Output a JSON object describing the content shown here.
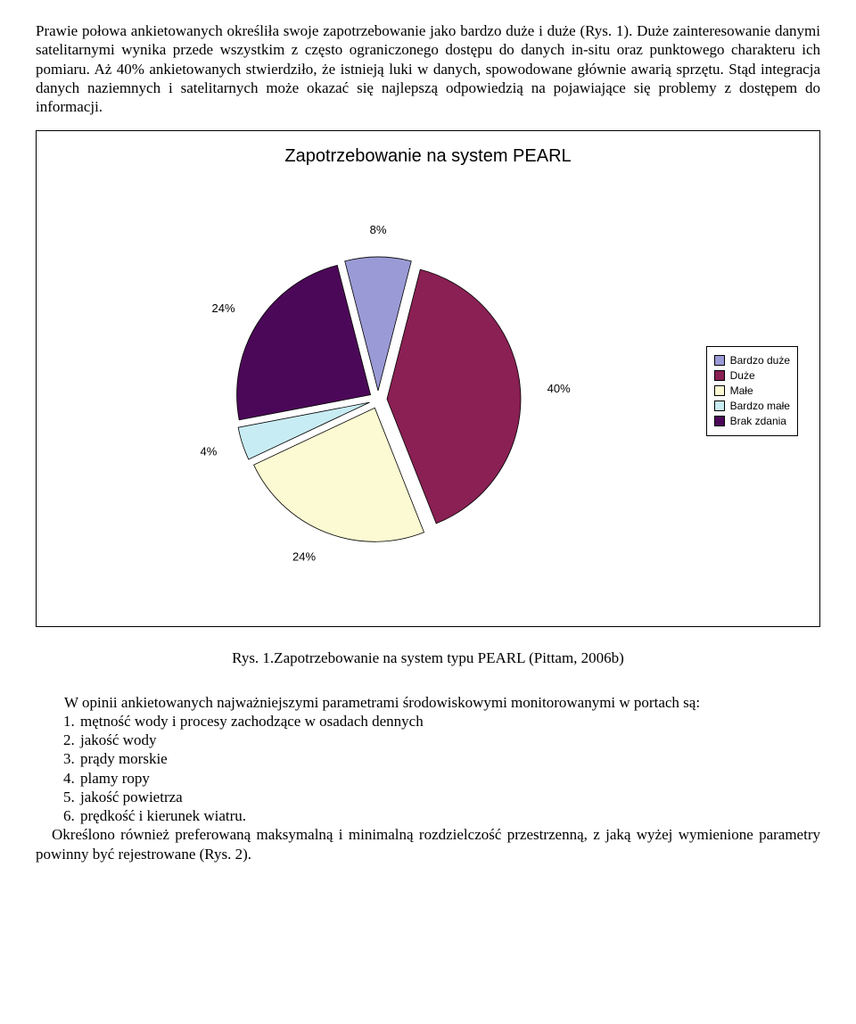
{
  "paragraph1": "Prawie połowa ankietowanych określiła swoje zapotrzebowanie jako bardzo duże i duże (Rys. 1). Duże zainteresowanie danymi satelitarnymi wynika przede wszystkim z często ograniczonego dostępu do danych in-situ oraz punktowego charakteru ich pomiaru. Aż 40% ankietowanych stwierdziło, że istnieją luki w danych,  spowodowane głównie awarią sprzętu. Stąd integracja danych naziemnych i satelitarnych może okazać się najlepszą odpowiedzią na pojawiające się problemy z dostępem do informacji.",
  "chart": {
    "title": "Zapotrzebowanie na system PEARL",
    "type": "pie",
    "slices": [
      {
        "label": "Bardzo duże",
        "value": 8,
        "color": "#9a9ad6",
        "labelText": "8%"
      },
      {
        "label": "Duże",
        "value": 40,
        "color": "#8a2054",
        "labelText": "40%"
      },
      {
        "label": "Małe",
        "value": 24,
        "color": "#fcfad2",
        "labelText": "24%"
      },
      {
        "label": "Bardzo małe",
        "value": 4,
        "color": "#c8ecf4",
        "labelText": "4%"
      },
      {
        "label": "Brak zdania",
        "value": 24,
        "color": "#4c0858",
        "labelText": "24%"
      }
    ],
    "legend": [
      "Bardzo duże",
      "Duże",
      "Małe",
      "Bardzo małe",
      "Brak zdania"
    ],
    "legend_colors": [
      "#9a9ad6",
      "#8a2054",
      "#fcfad2",
      "#c8ecf4",
      "#4c0858"
    ],
    "title_font": "Arial",
    "title_fontsize": 20,
    "label_font": "Arial",
    "label_fontsize": 13,
    "exploded": true,
    "background_color": "#ffffff",
    "border_color": "#000000"
  },
  "caption": "Rys. 1.Zapotrzebowanie na system typu PEARL (Pittam, 2006b)",
  "paragraph2_lead": "W    opinii    ankietowanych    najważniejszymi    parametrami    środowiskowymi monitorowanymi w portach są:",
  "list": [
    "mętność wody i procesy zachodzące w osadach dennych",
    "jakość wody",
    "prądy morskie",
    "plamy ropy",
    "jakość powietrza",
    "prędkość i kierunek wiatru."
  ],
  "paragraph3": "Określono również preferowaną maksymalną i minimalną rozdzielczość przestrzenną, z jaką wyżej wymienione parametry powinny być rejestrowane (Rys. 2)."
}
